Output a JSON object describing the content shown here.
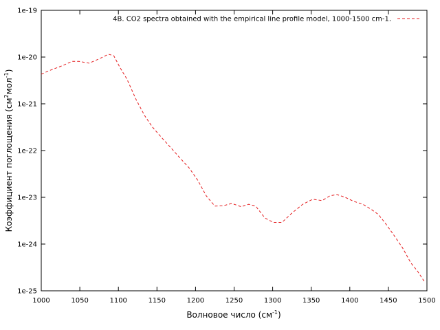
{
  "chart_data": {
    "type": "line",
    "xlabel": {
      "parts": [
        "Волновое число (см",
        "-1",
        ")"
      ]
    },
    "ylabel": {
      "parts": [
        "Коэффициент поглощения (см",
        "2",
        "мол",
        "-1",
        ")"
      ]
    },
    "x": [
      1000,
      1010,
      1027,
      1040,
      1049,
      1062,
      1076,
      1087,
      1094,
      1102,
      1111,
      1123,
      1134,
      1144,
      1156,
      1168,
      1180,
      1192,
      1203,
      1214,
      1225,
      1236,
      1247,
      1259,
      1269,
      1278,
      1290,
      1301,
      1312,
      1325,
      1339,
      1352,
      1364,
      1374,
      1383,
      1394,
      1405,
      1417,
      1428,
      1437,
      1446,
      1456,
      1468,
      1479,
      1488,
      1497
    ],
    "series": [
      {
        "name": "4B. CO2 spectra obtained with the empirical line profile model, 1000-1500 cm-1.",
        "color": "#e41a1c",
        "values": [
          4.3e-21,
          5.1e-21,
          6.5e-21,
          8.1e-21,
          8.1e-21,
          7.4e-21,
          9.3e-21,
          1.15e-20,
          1.07e-20,
          6e-21,
          3.4e-21,
          1.23e-21,
          5.6e-22,
          3.2e-22,
          1.9e-22,
          1.15e-22,
          6.9e-23,
          4.2e-23,
          2.3e-23,
          1.07e-23,
          6.5e-24,
          6.6e-24,
          7.4e-24,
          6.3e-24,
          7.1e-24,
          6.5e-24,
          3.6e-24,
          2.9e-24,
          2.9e-24,
          4.6e-24,
          7.1e-24,
          9.1e-24,
          8.5e-24,
          1.07e-23,
          1.15e-23,
          1e-23,
          8.2e-24,
          7.1e-24,
          5.5e-24,
          4.3e-24,
          2.8e-24,
          1.65e-24,
          8.5e-25,
          4e-25,
          2.6e-25,
          1.55e-25
        ]
      }
    ],
    "xlim": [
      1000,
      1500
    ],
    "xticks": [
      1000,
      1050,
      1100,
      1150,
      1200,
      1250,
      1300,
      1350,
      1400,
      1450,
      1500
    ],
    "ylim": [
      1e-25,
      1e-19
    ],
    "yticks": [
      1e-25,
      1e-24,
      1e-23,
      1e-22,
      1e-21,
      1e-20,
      1e-19
    ],
    "ylog": true,
    "legend": "top-right"
  }
}
